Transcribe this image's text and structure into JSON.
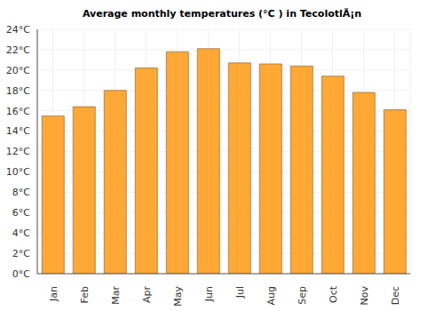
{
  "chart_data": {
    "type": "bar",
    "title": "Average monthly temperatures (°C ) in TecolotlÃ¡n",
    "categories": [
      "Jan",
      "Feb",
      "Mar",
      "Apr",
      "May",
      "Jun",
      "Jul",
      "Aug",
      "Sep",
      "Oct",
      "Nov",
      "Dec"
    ],
    "values": [
      15.5,
      16.4,
      18.0,
      20.2,
      21.8,
      22.1,
      20.7,
      20.6,
      20.4,
      19.4,
      17.8,
      16.1
    ],
    "color": "#ffa836",
    "ylim": [
      0,
      24
    ],
    "yticks": [
      {
        "value": 0,
        "label": "0°C"
      },
      {
        "value": 2,
        "label": "2°C"
      },
      {
        "value": 4,
        "label": "4°C"
      },
      {
        "value": 6,
        "label": "6°C"
      },
      {
        "value": 8,
        "label": "8°C"
      },
      {
        "value": 10,
        "label": "10°C"
      },
      {
        "value": 12,
        "label": "12°C"
      },
      {
        "value": 14,
        "label": "14°C"
      },
      {
        "value": 16,
        "label": "16°C"
      },
      {
        "value": 18,
        "label": "18°C"
      },
      {
        "value": 20,
        "label": "20°C"
      },
      {
        "value": 22,
        "label": "22°C"
      },
      {
        "value": 24,
        "label": "24°C"
      }
    ],
    "grid": true
  }
}
